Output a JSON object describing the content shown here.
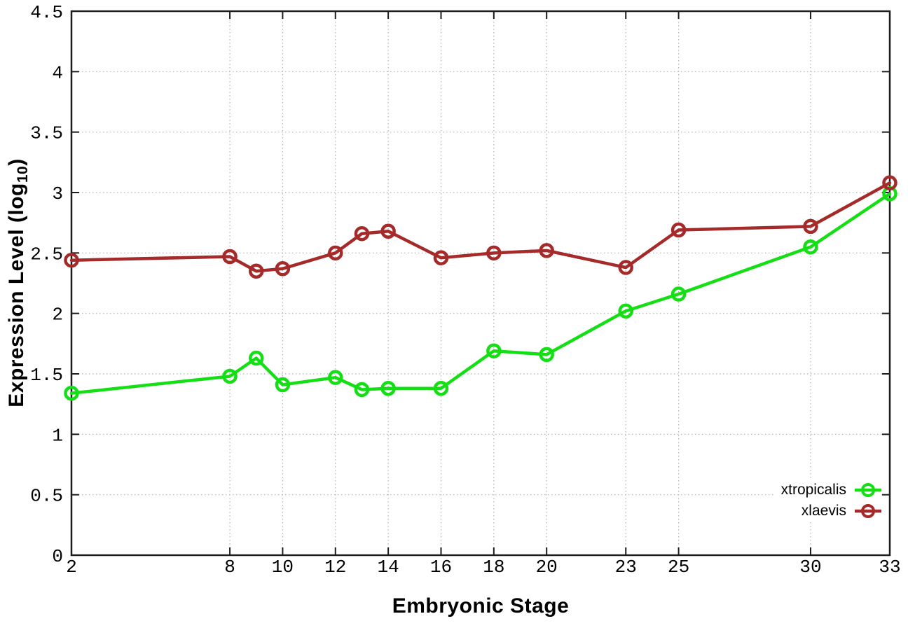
{
  "chart_data": {
    "type": "line",
    "title": "",
    "xlabel": "Embryonic Stage",
    "ylabel": {
      "main": "Expression Level (log",
      "sub": "10",
      "end": ")"
    },
    "x": [
      2,
      8,
      9,
      10,
      12,
      13,
      14,
      16,
      18,
      20,
      23,
      25,
      30,
      33
    ],
    "series": [
      {
        "name": "xtropicalis",
        "color": "#14DF14",
        "values": [
          1.34,
          1.48,
          1.63,
          1.41,
          1.47,
          1.37,
          1.38,
          1.38,
          1.69,
          1.66,
          2.02,
          2.16,
          2.55,
          2.99
        ]
      },
      {
        "name": "xlaevis",
        "color": "#A52A2A",
        "values": [
          2.44,
          2.47,
          2.35,
          2.37,
          2.5,
          2.66,
          2.68,
          2.46,
          2.5,
          2.52,
          2.38,
          2.69,
          2.72,
          3.08
        ]
      }
    ],
    "xticks": [
      2,
      8,
      10,
      12,
      14,
      16,
      18,
      20,
      23,
      25,
      30,
      33
    ],
    "yticks": [
      0,
      0.5,
      1,
      1.5,
      2,
      2.5,
      3,
      3.5,
      4,
      4.5
    ],
    "xlim": [
      2,
      33
    ],
    "ylim": [
      0,
      4.5
    ],
    "grid": true,
    "grid_color": "#b0b0b0",
    "border_color": "#1c1c1c",
    "legend_position": "inside-bottom-right",
    "marker": "open-circle"
  }
}
